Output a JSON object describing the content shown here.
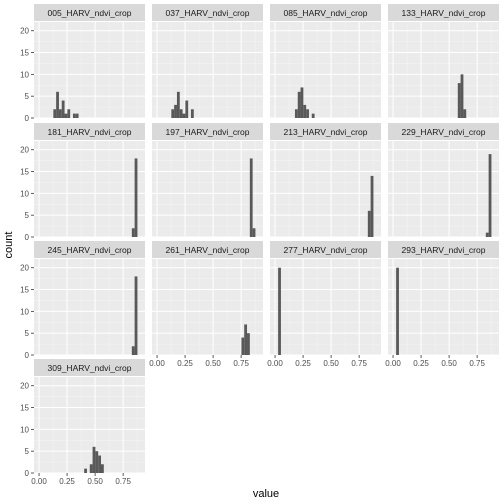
{
  "chart_data": {
    "type": "bar",
    "subtype": "faceted-histogram",
    "xlabel": "value",
    "ylabel": "count",
    "ylim": [
      0,
      22
    ],
    "y_ticks": [
      0,
      5,
      10,
      15,
      20
    ],
    "x_ticks": [
      0.0,
      0.25,
      0.5,
      0.75
    ],
    "x_tick_labels": [
      "0.00",
      "0.25",
      "0.50",
      "0.75"
    ],
    "xlim": [
      -0.045,
      0.945
    ],
    "bin_width": 0.025,
    "grid": true,
    "bar_color": "#595959",
    "panel_background": "#ebebeb",
    "strip_background": "#d9d9d9",
    "facets": [
      {
        "label": "005_HARV_ndvi_crop",
        "bins": [
          [
            0.14,
            2
          ],
          [
            0.165,
            6
          ],
          [
            0.19,
            2
          ],
          [
            0.215,
            4
          ],
          [
            0.24,
            1
          ],
          [
            0.265,
            2
          ],
          [
            0.315,
            1
          ],
          [
            0.34,
            1
          ]
        ]
      },
      {
        "label": "037_HARV_ndvi_crop",
        "bins": [
          [
            0.14,
            2
          ],
          [
            0.165,
            3
          ],
          [
            0.19,
            6
          ],
          [
            0.215,
            2
          ],
          [
            0.24,
            1
          ],
          [
            0.265,
            4
          ],
          [
            0.315,
            2
          ]
        ]
      },
      {
        "label": "085_HARV_ndvi_crop",
        "bins": [
          [
            0.19,
            2
          ],
          [
            0.215,
            6
          ],
          [
            0.24,
            7
          ],
          [
            0.265,
            3
          ],
          [
            0.29,
            2
          ],
          [
            0.34,
            1
          ]
        ]
      },
      {
        "label": "133_HARV_ndvi_crop",
        "bins": [
          [
            0.59,
            8
          ],
          [
            0.615,
            10
          ],
          [
            0.64,
            2
          ]
        ]
      },
      {
        "label": "181_HARV_ndvi_crop",
        "bins": [
          [
            0.84,
            2
          ],
          [
            0.865,
            18
          ]
        ]
      },
      {
        "label": "197_HARV_ndvi_crop",
        "bins": [
          [
            0.84,
            18
          ],
          [
            0.865,
            2
          ]
        ]
      },
      {
        "label": "213_HARV_ndvi_crop",
        "bins": [
          [
            0.84,
            6
          ],
          [
            0.865,
            14
          ]
        ]
      },
      {
        "label": "229_HARV_ndvi_crop",
        "bins": [
          [
            0.84,
            1
          ],
          [
            0.865,
            19
          ]
        ]
      },
      {
        "label": "245_HARV_ndvi_crop",
        "bins": [
          [
            0.84,
            2
          ],
          [
            0.865,
            18
          ]
        ]
      },
      {
        "label": "261_HARV_ndvi_crop",
        "bins": [
          [
            0.765,
            4
          ],
          [
            0.79,
            7
          ],
          [
            0.815,
            5
          ]
        ]
      },
      {
        "label": "277_HARV_ndvi_crop",
        "bins": [
          [
            0.04,
            20
          ]
        ]
      },
      {
        "label": "293_HARV_ndvi_crop",
        "bins": [
          [
            0.04,
            20
          ]
        ]
      },
      {
        "label": "309_HARV_ndvi_crop",
        "bins": [
          [
            0.415,
            1
          ],
          [
            0.465,
            2
          ],
          [
            0.49,
            6
          ],
          [
            0.515,
            5
          ],
          [
            0.54,
            4
          ],
          [
            0.565,
            2
          ]
        ]
      }
    ]
  }
}
